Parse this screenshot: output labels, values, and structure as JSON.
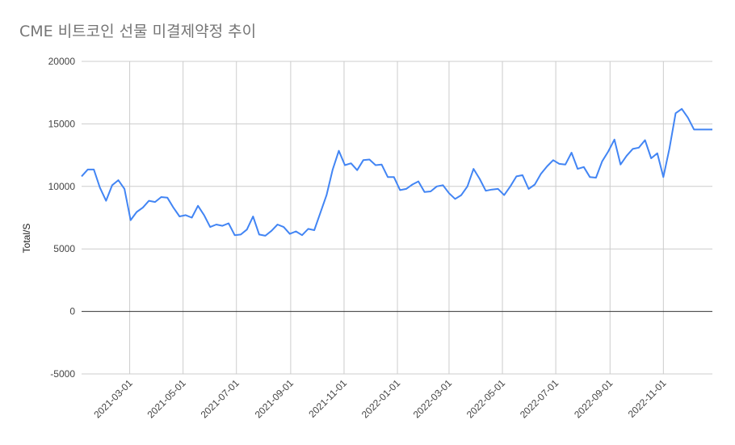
{
  "chart_data": {
    "type": "line",
    "title": "CME 비트코인 선물 미결제약정 추이",
    "xlabel": "",
    "ylabel": "Total/S",
    "ylim": [
      -5000,
      20000
    ],
    "yticks": [
      -5000,
      0,
      5000,
      10000,
      15000,
      20000
    ],
    "ytick_labels": [
      "-5000",
      "0",
      "5000",
      "10000",
      "15000",
      "20000"
    ],
    "xlim": [
      "2021-01-05",
      "2022-12-27"
    ],
    "xticks": [
      "2021-03-01",
      "2021-05-01",
      "2021-07-01",
      "2021-09-01",
      "2021-11-01",
      "2022-01-01",
      "2022-03-01",
      "2022-05-01",
      "2022-07-01",
      "2022-09-01",
      "2022-11-01"
    ],
    "grid": true,
    "legend": "none",
    "series": [
      {
        "color": "#4285f4",
        "x": [
          "2021-01-05",
          "2021-01-12",
          "2021-01-19",
          "2021-01-26",
          "2021-02-02",
          "2021-02-09",
          "2021-02-16",
          "2021-02-23",
          "2021-03-02",
          "2021-03-09",
          "2021-03-16",
          "2021-03-23",
          "2021-03-30",
          "2021-04-06",
          "2021-04-13",
          "2021-04-20",
          "2021-04-27",
          "2021-05-04",
          "2021-05-11",
          "2021-05-18",
          "2021-05-25",
          "2021-06-01",
          "2021-06-08",
          "2021-06-15",
          "2021-06-22",
          "2021-06-29",
          "2021-07-06",
          "2021-07-13",
          "2021-07-20",
          "2021-07-27",
          "2021-08-03",
          "2021-08-10",
          "2021-08-17",
          "2021-08-24",
          "2021-08-31",
          "2021-09-07",
          "2021-09-14",
          "2021-09-21",
          "2021-09-28",
          "2021-10-05",
          "2021-10-12",
          "2021-10-19",
          "2021-10-26",
          "2021-11-02",
          "2021-11-09",
          "2021-11-16",
          "2021-11-23",
          "2021-11-30",
          "2021-12-07",
          "2021-12-14",
          "2021-12-21",
          "2021-12-28",
          "2022-01-04",
          "2022-01-11",
          "2022-01-18",
          "2022-01-25",
          "2022-02-01",
          "2022-02-08",
          "2022-02-15",
          "2022-02-22",
          "2022-03-01",
          "2022-03-08",
          "2022-03-15",
          "2022-03-22",
          "2022-03-29",
          "2022-04-05",
          "2022-04-12",
          "2022-04-19",
          "2022-04-26",
          "2022-05-03",
          "2022-05-10",
          "2022-05-17",
          "2022-05-24",
          "2022-05-31",
          "2022-06-07",
          "2022-06-14",
          "2022-06-21",
          "2022-06-28",
          "2022-07-05",
          "2022-07-12",
          "2022-07-19",
          "2022-07-26",
          "2022-08-02",
          "2022-08-09",
          "2022-08-16",
          "2022-08-23",
          "2022-08-30",
          "2022-09-06",
          "2022-09-13",
          "2022-09-20",
          "2022-09-27",
          "2022-10-04",
          "2022-10-11",
          "2022-10-18",
          "2022-10-25",
          "2022-11-01",
          "2022-11-08",
          "2022-11-15",
          "2022-11-22",
          "2022-11-29",
          "2022-12-06",
          "2022-12-13",
          "2022-12-20",
          "2022-12-27"
        ],
        "y": [
          10800,
          11350,
          11350,
          9900,
          8850,
          10100,
          10500,
          9800,
          7300,
          7950,
          8300,
          8850,
          8750,
          9150,
          9100,
          8300,
          7600,
          7700,
          7500,
          8450,
          7700,
          6750,
          6950,
          6850,
          7050,
          6100,
          6150,
          6550,
          7600,
          6150,
          6050,
          6450,
          6950,
          6750,
          6200,
          6400,
          6100,
          6600,
          6500,
          7900,
          9300,
          11350,
          12850,
          11700,
          11850,
          11300,
          12100,
          12150,
          11700,
          11750,
          10750,
          10750,
          9700,
          9800,
          10150,
          10400,
          9550,
          9600,
          10000,
          10100,
          9450,
          9000,
          9300,
          10000,
          11400,
          10600,
          9650,
          9750,
          9800,
          9300,
          10000,
          10800,
          10900,
          9800,
          10150,
          11000,
          11600,
          12100,
          11800,
          11750,
          12700,
          11400,
          11550,
          10750,
          10700,
          12000,
          12800,
          13750,
          11750,
          12450,
          13000,
          13100,
          13700,
          12250,
          12650,
          10750,
          13050,
          15850,
          16200,
          15500,
          14550,
          14550,
          14550,
          14550
        ]
      }
    ]
  }
}
